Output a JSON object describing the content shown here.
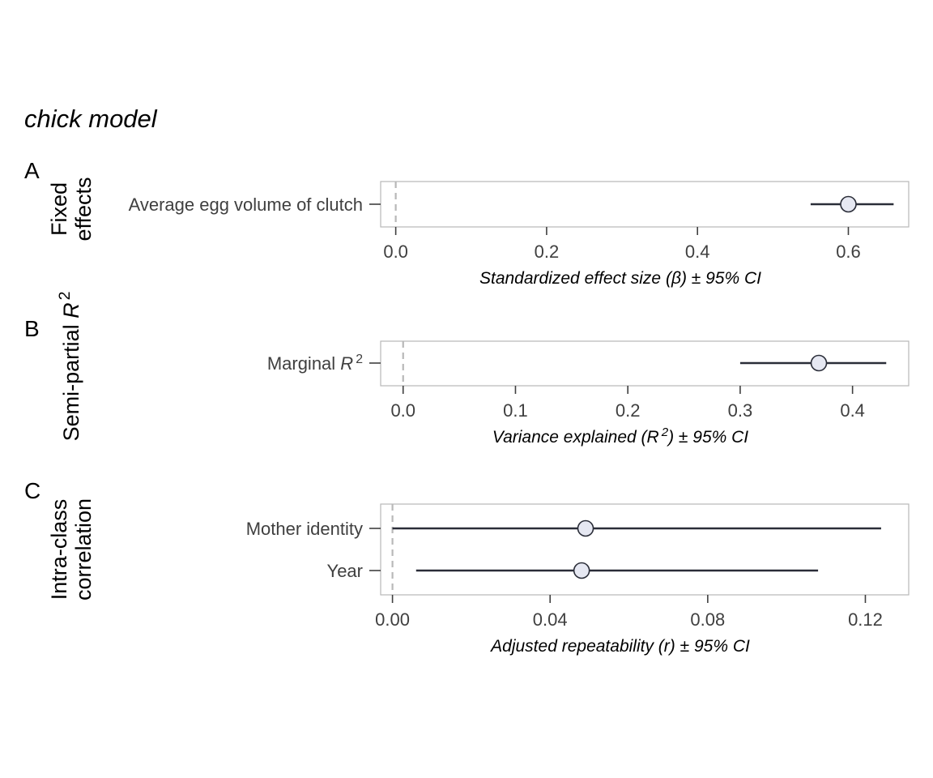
{
  "chart_data": {
    "title": "chick model",
    "type": "forest",
    "panels": [
      {
        "letter": "A",
        "strip_label": [
          "Fixed",
          "effects"
        ],
        "xlabel": "Standardized effect size (β) ± 95% CI",
        "xlim": [
          -0.02,
          0.68
        ],
        "ticks": [
          0.0,
          0.2,
          0.4,
          0.6
        ],
        "tick_labels": [
          "0.0",
          "0.2",
          "0.4",
          "0.6"
        ],
        "reference_line": 0,
        "rows": [
          {
            "label": "Average egg volume of clutch",
            "estimate": 0.6,
            "lower": 0.55,
            "upper": 0.66
          }
        ]
      },
      {
        "letter": "B",
        "strip_label": [
          "Semi-partial R²"
        ],
        "xlabel": "Variance explained (R²) ± 95% CI",
        "xlim": [
          -0.02,
          0.45
        ],
        "ticks": [
          0.0,
          0.1,
          0.2,
          0.3,
          0.4
        ],
        "tick_labels": [
          "0.0",
          "0.1",
          "0.2",
          "0.3",
          "0.4"
        ],
        "reference_line": 0,
        "rows": [
          {
            "label": "Marginal R²",
            "estimate": 0.37,
            "lower": 0.3,
            "upper": 0.43
          }
        ]
      },
      {
        "letter": "C",
        "strip_label": [
          "Intra-class",
          "correlation"
        ],
        "xlabel": "Adjusted repeatability (r) ± 95% CI",
        "xlim": [
          -0.003,
          0.131
        ],
        "ticks": [
          0.0,
          0.04,
          0.08,
          0.12
        ],
        "tick_labels": [
          "0.00",
          "0.04",
          "0.08",
          "0.12"
        ],
        "reference_line": 0,
        "rows": [
          {
            "label": "Mother identity",
            "estimate": 0.049,
            "lower": 0.0,
            "upper": 0.124
          },
          {
            "label": "Year",
            "estimate": 0.048,
            "lower": 0.006,
            "upper": 0.108
          }
        ]
      }
    ],
    "colors": {
      "point_fill": "#e6e8f2",
      "point_stroke": "#2a2d38",
      "ci_line": "#2a2d38",
      "reference_line": "#b8b8b8",
      "panel_border": "#b8b8b8"
    }
  }
}
